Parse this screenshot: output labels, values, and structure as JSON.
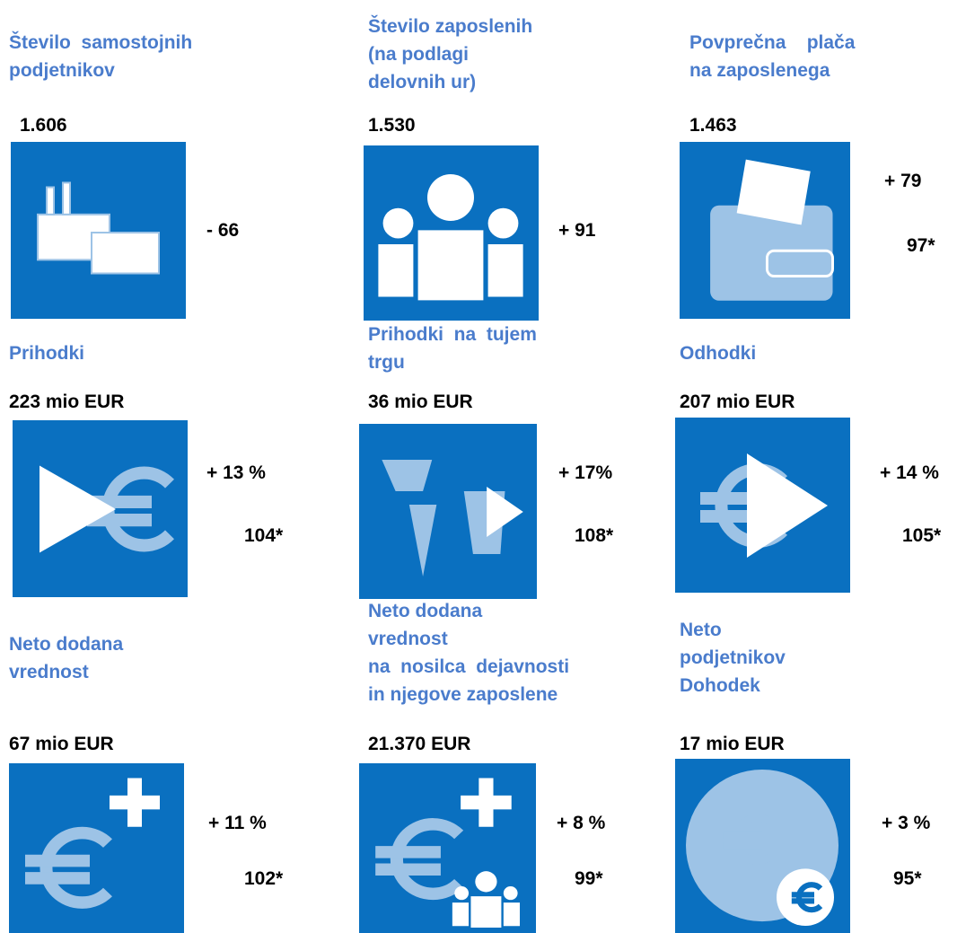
{
  "cells": [
    {
      "title_lines": [
        "Število  samostojnih",
        "podjetnikov"
      ],
      "value": "1.606",
      "change": "- 66"
    },
    {
      "title_lines": [
        "Število zaposlenih",
        "(na podlagi",
        "delovnih ur)"
      ],
      "value": "1.530",
      "change": "+ 91"
    },
    {
      "title_lines": [
        "Povprečna    plača",
        "na zaposlenega"
      ],
      "value": "1.463",
      "change": "+ 79",
      "index": "97*"
    },
    {
      "title_lines": [
        "Prihodki"
      ],
      "value": "223 mio EUR",
      "change": "+ 13 %",
      "index": "104*"
    },
    {
      "title_lines": [
        "Prihodki  na  tujem",
        "trgu"
      ],
      "value": "36 mio EUR",
      "change": "+ 17%",
      "index": "108*"
    },
    {
      "title_lines": [
        "Odhodki"
      ],
      "value": "207 mio EUR",
      "change": "+ 14 %",
      "index": "105*"
    },
    {
      "title_lines": [
        "Neto dodana",
        "vrednost"
      ],
      "value": "67 mio EUR",
      "change": "+ 11 %",
      "index": "102*"
    },
    {
      "title_lines": [
        "Neto dodana",
        "vrednost",
        "na  nosilca  dejavnosti",
        "in njegove zaposlene"
      ],
      "value": "21.370 EUR",
      "change": "+ 8 %",
      "index": "99*"
    },
    {
      "title_lines": [
        "Neto",
        "podjetnikov",
        "Dohodek"
      ],
      "value": "17 mio EUR",
      "change": "+ 3 %",
      "index": "95*"
    }
  ]
}
